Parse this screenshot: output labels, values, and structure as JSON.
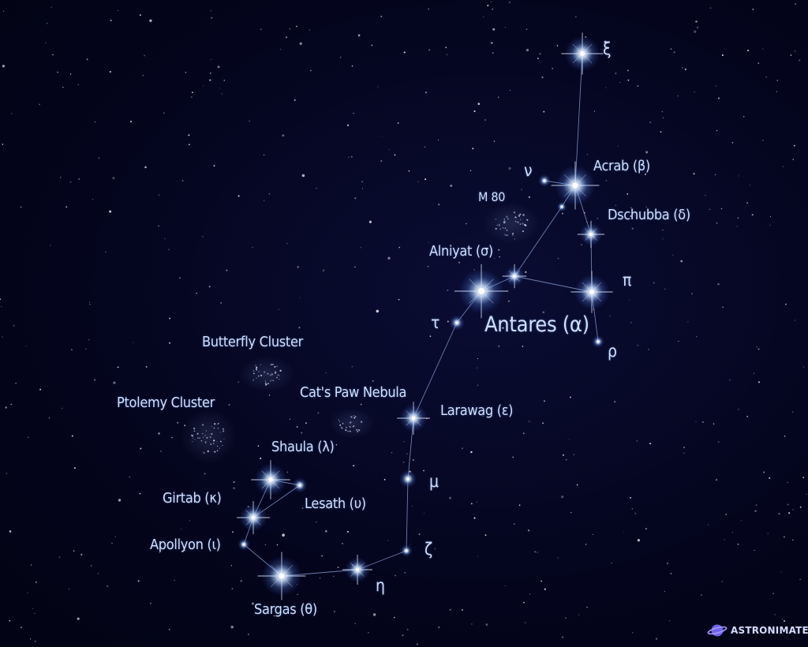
{
  "labels": {
    "xi": "ξ",
    "nu": "ν",
    "acrab": "Acrab (β)",
    "m80": "M 80",
    "dschubba": "Dschubba (δ)",
    "alniyat": "Alniyat (σ)",
    "pi": "π",
    "tau": "τ",
    "antares": "Antares (α)",
    "rho": "ρ",
    "butterfly": "Butterfly Cluster",
    "catspaw": "Cat's Paw Nebula",
    "ptolemy": "Ptolemy Cluster",
    "larawag": "Larawag (ε)",
    "shaula": "Shaula (λ)",
    "mu": "μ",
    "girtab": "Girtab (κ)",
    "lesath": "Lesath (υ)",
    "apollyon": "Apollyon (ι)",
    "zeta": "ζ",
    "eta": "η",
    "sargas": "Sargas (θ)"
  },
  "brand": {
    "text": "ASTRONIMATE",
    "icon": "planet-icon"
  },
  "colors": {
    "background": "#03041a",
    "line": "#8ea6d8",
    "label": "#cfe0ff",
    "star": "#ffffff",
    "glow": "#9cc6ff"
  }
}
